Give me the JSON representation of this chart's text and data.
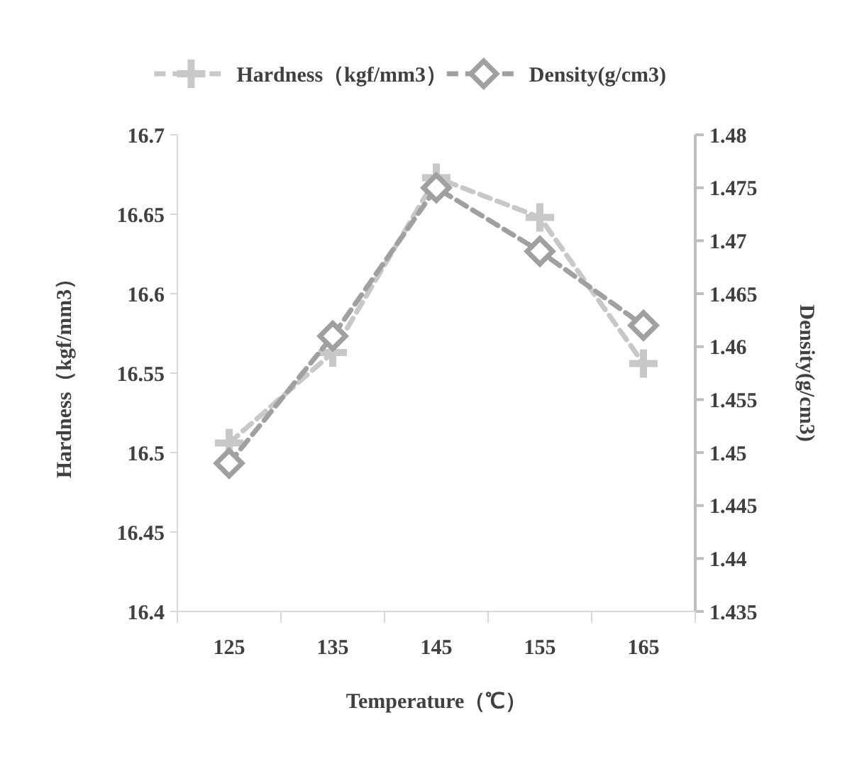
{
  "chart_data": {
    "type": "line",
    "categories": [
      "125",
      "135",
      "145",
      "155",
      "165"
    ],
    "xlabel": "Temperature（℃）",
    "ylabel": "Hardness（kgf/mm3）",
    "y2label": "Density(g/cm3)",
    "ylim": [
      16.4,
      16.7
    ],
    "yticks": [
      16.4,
      16.45,
      16.5,
      16.55,
      16.6,
      16.65,
      16.7
    ],
    "y2lim": [
      1.435,
      1.48
    ],
    "y2ticks": [
      1.435,
      1.44,
      1.445,
      1.45,
      1.455,
      1.46,
      1.465,
      1.47,
      1.475,
      1.48
    ],
    "legend": "top",
    "line_style": "dashed",
    "grid": false,
    "series": [
      {
        "name": "Hardness（kgf/mm3）",
        "color": "#c8c8c8",
        "marker": "cross",
        "values": [
          16.506,
          16.563,
          16.673,
          16.648,
          16.556
        ]
      },
      {
        "name": "Density(g/cm3)",
        "color": "#a0a0a0",
        "marker": "diamond",
        "axis": "y2",
        "values": [
          1.449,
          1.461,
          1.475,
          1.469,
          1.462
        ]
      }
    ]
  }
}
